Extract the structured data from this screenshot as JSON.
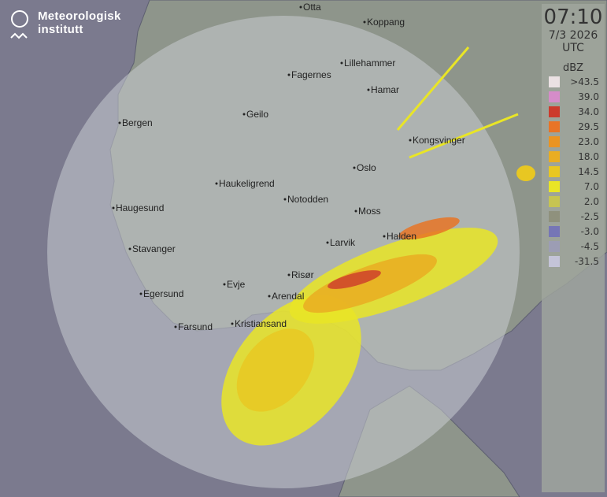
{
  "brand": {
    "line1": "Meteorologisk",
    "line2": "institutt"
  },
  "legend": {
    "time": "07:10",
    "date": "7/3 2026",
    "timezone": "UTC",
    "unit": "dBZ",
    "levels": [
      {
        "label": ">43.5",
        "color": "#ebe1e3"
      },
      {
        "label": "39.0",
        "color": "#d58cc9"
      },
      {
        "label": "34.0",
        "color": "#cc3a2c"
      },
      {
        "label": "29.5",
        "color": "#e87426"
      },
      {
        "label": "23.0",
        "color": "#ea9422"
      },
      {
        "label": "18.0",
        "color": "#e9ad22"
      },
      {
        "label": "14.5",
        "color": "#e8c722"
      },
      {
        "label": "7.0",
        "color": "#e9e526"
      },
      {
        "label": "2.0",
        "color": "#c6c452"
      },
      {
        "label": "-2.5",
        "color": "#8f917d"
      },
      {
        "label": "-3.0",
        "color": "#7676b6"
      },
      {
        "label": "-4.5",
        "color": "#9c9db4"
      },
      {
        "label": "-31.5",
        "color": "#c4c4d8"
      }
    ]
  },
  "cities": [
    "Otta",
    "Koppang",
    "Lillehammer",
    "Fagernes",
    "Hamar",
    "Geilo",
    "Bergen",
    "Kongsvinger",
    "Oslo",
    "Haukeligrend",
    "Notodden",
    "Haugesund",
    "Moss",
    "Halden",
    "Larvik",
    "Stavanger",
    "Risør",
    "Evje",
    "Egersund",
    "Arendal",
    "Farsund",
    "Kristiansand"
  ]
}
